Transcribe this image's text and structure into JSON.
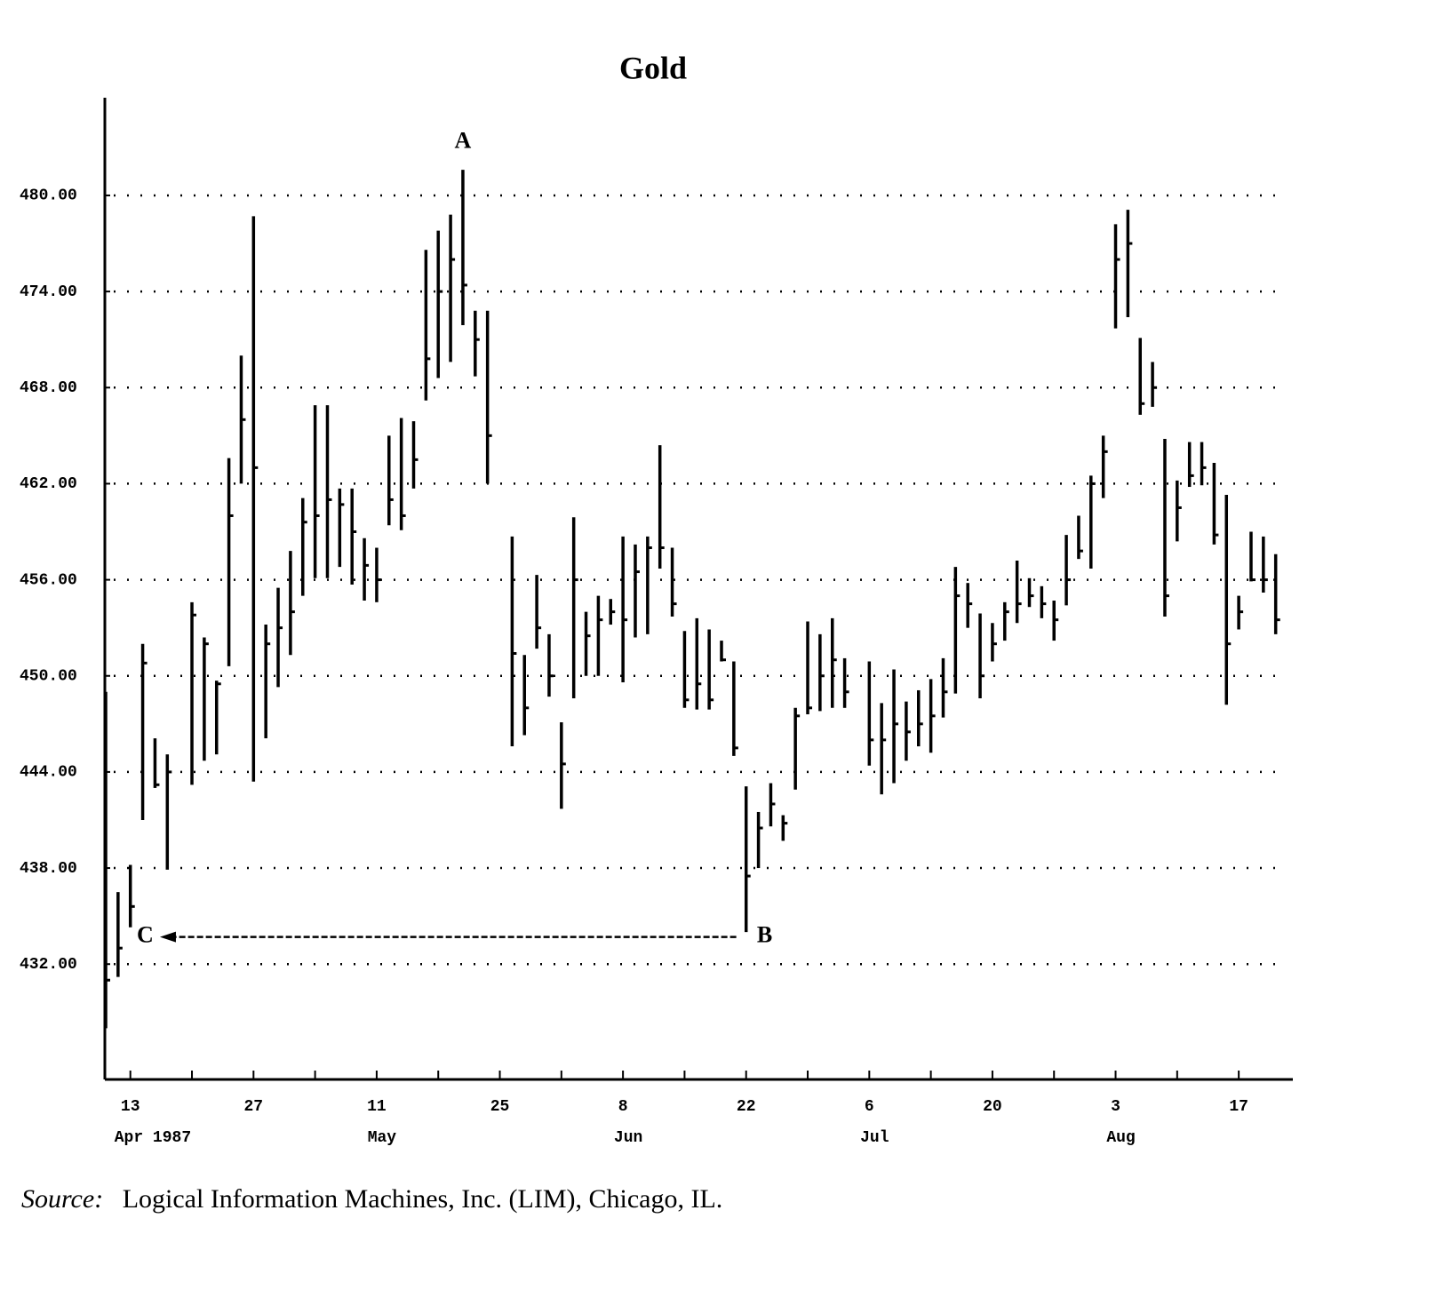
{
  "chart_data": {
    "type": "ohlc",
    "title": "Gold",
    "source_label": "Source:",
    "source": "Logical Information Machines, Inc. (LIM), Chicago, IL.",
    "color": "#000000",
    "grid": true,
    "ylim": [
      424.8,
      486.1
    ],
    "yticks": [
      {
        "value": 480,
        "label": "480.00"
      },
      {
        "value": 474,
        "label": "474.00"
      },
      {
        "value": 468,
        "label": "468.00"
      },
      {
        "value": 462,
        "label": "462.00"
      },
      {
        "value": 456,
        "label": "456.00"
      },
      {
        "value": 450,
        "label": "450.00"
      },
      {
        "value": 444,
        "label": "444.00"
      },
      {
        "value": 438,
        "label": "438.00"
      },
      {
        "value": 432,
        "label": "432.00"
      }
    ],
    "categories": [
      null,
      null,
      "13",
      null,
      null,
      null,
      null,
      null,
      null,
      null,
      null,
      null,
      "27",
      null,
      null,
      null,
      null,
      null,
      null,
      null,
      null,
      null,
      "11",
      null,
      null,
      null,
      null,
      null,
      null,
      null,
      null,
      null,
      "25",
      null,
      null,
      null,
      null,
      null,
      null,
      null,
      null,
      null,
      "8",
      null,
      null,
      null,
      null,
      null,
      null,
      null,
      null,
      null,
      "22",
      null,
      null,
      null,
      null,
      null,
      null,
      null,
      null,
      null,
      "6",
      null,
      null,
      null,
      null,
      null,
      null,
      null,
      null,
      null,
      "20",
      null,
      null,
      null,
      null,
      null,
      null,
      null,
      null,
      null,
      "3",
      null,
      null,
      null,
      null,
      null,
      null,
      null,
      null,
      null,
      "17",
      null,
      null,
      null
    ],
    "month_ticks": [
      {
        "value": 2,
        "label": "Apr 1987"
      },
      {
        "value": 22,
        "label": "May"
      },
      {
        "value": 42,
        "label": "Jun"
      },
      {
        "value": 62,
        "label": "Jul"
      },
      {
        "value": 82,
        "label": "Aug"
      }
    ],
    "high": [
      449,
      436.5,
      438.2,
      452,
      446.1,
      445.1,
      null,
      454.6,
      452.4,
      449.7,
      463.6,
      470,
      478.7,
      453.2,
      455.5,
      457.8,
      461.1,
      466.9,
      466.9,
      461.7,
      461.7,
      458.6,
      458,
      465,
      466.1,
      465.9,
      476.6,
      477.8,
      478.8,
      481.6,
      472.8,
      472.8,
      null,
      458.7,
      451.3,
      456.3,
      452.6,
      447.1,
      459.9,
      454,
      455,
      454.8,
      458.7,
      458.2,
      458.7,
      464.4,
      458,
      452.8,
      453.6,
      452.9,
      452.2,
      450.9,
      443.1,
      441.5,
      443.3,
      441.3,
      448,
      453.4,
      452.6,
      453.6,
      451.1,
      null,
      450.9,
      448.3,
      450.4,
      448.4,
      449.1,
      449.8,
      451.1,
      456.8,
      455.8,
      453.9,
      453.3,
      454.6,
      457.2,
      456.1,
      455.6,
      454.7,
      458.8,
      460,
      462.5,
      465,
      478.2,
      479.1,
      471.1,
      469.6,
      464.8,
      462.2,
      464.6,
      464.6,
      463.3,
      461.3,
      455,
      459,
      458.7,
      457.6
    ],
    "low": [
      428,
      431.2,
      434.3,
      441,
      443,
      437.9,
      null,
      443.2,
      444.7,
      445.1,
      450.6,
      462,
      443.4,
      446.1,
      449.3,
      451.3,
      455,
      456.1,
      456.1,
      456.8,
      455.7,
      454.7,
      454.6,
      459.4,
      459.1,
      461.7,
      467.2,
      468.6,
      469.6,
      471.9,
      468.7,
      462,
      null,
      445.6,
      446.3,
      451.7,
      448.7,
      441.7,
      448.6,
      450,
      450,
      453.2,
      449.6,
      452.4,
      452.6,
      456.7,
      453.7,
      448,
      447.9,
      447.9,
      450.9,
      445,
      434,
      438,
      440.6,
      439.7,
      442.9,
      447.6,
      447.8,
      448,
      448,
      null,
      444.4,
      442.6,
      443.3,
      444.7,
      445.6,
      445.2,
      447.4,
      448.9,
      453,
      448.6,
      450.9,
      452.2,
      453.3,
      454.3,
      453.6,
      452.2,
      454.4,
      457.3,
      456.7,
      461.1,
      471.7,
      472.4,
      466.3,
      466.8,
      453.7,
      458.4,
      461.8,
      461.9,
      458.2,
      448.2,
      452.9,
      455.9,
      455.2,
      452.6
    ],
    "close": [
      431,
      433,
      435.6,
      450.8,
      443.2,
      444,
      null,
      453.8,
      452,
      449.5,
      460,
      466,
      463,
      452,
      453,
      454,
      459.6,
      460,
      461,
      460.7,
      459,
      456.9,
      456,
      461,
      460,
      463.5,
      469.8,
      474,
      476,
      474.4,
      471,
      465,
      null,
      451.4,
      448,
      453,
      450,
      444.5,
      456,
      452.5,
      453.5,
      454,
      453.5,
      456.5,
      458,
      458,
      454.5,
      448.5,
      449.5,
      448.5,
      451,
      445.5,
      437.5,
      440.5,
      442,
      440.8,
      447.5,
      448,
      450,
      451,
      449,
      null,
      446,
      446,
      447,
      446.5,
      447,
      447.5,
      449,
      455,
      454.5,
      450,
      452,
      454,
      454.5,
      455,
      454.5,
      453.5,
      456,
      457.8,
      462,
      464,
      476,
      477,
      467,
      468,
      455,
      460.5,
      462.5,
      463,
      458.8,
      452,
      454,
      456,
      456,
      453.5
    ],
    "annotations": [
      {
        "text": "A",
        "x": 29,
        "y": 483.3
      },
      {
        "text": "B",
        "x": 53.5,
        "y": 433.7
      },
      {
        "text": "C",
        "x": 3.2,
        "y": 433.7
      }
    ],
    "arrow": {
      "x": [
        51.2,
        4.4
      ],
      "y": 433.7
    }
  }
}
